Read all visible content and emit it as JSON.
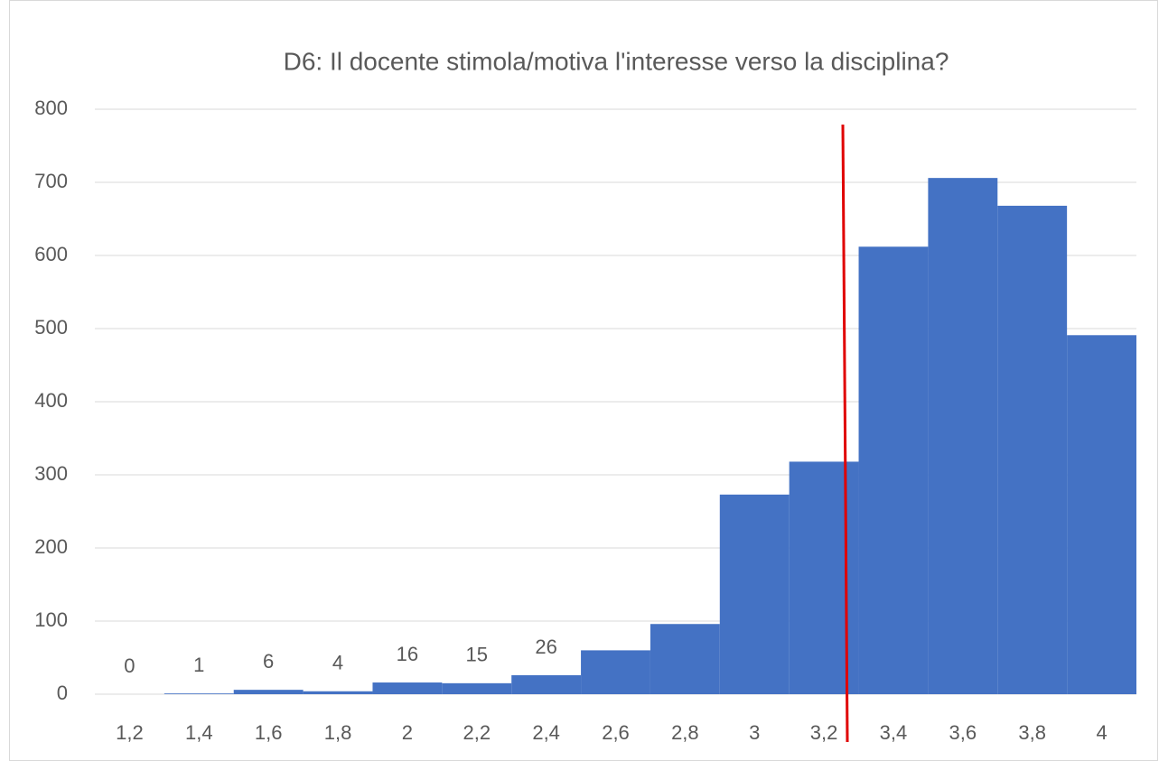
{
  "chart_data": {
    "type": "bar",
    "title": "D6: Il docente stimola/motiva l'interesse verso la disciplina?",
    "categories": [
      "1,2",
      "1,4",
      "1,6",
      "1,8",
      "2",
      "2,2",
      "2,4",
      "2,6",
      "2,8",
      "3",
      "3,2",
      "3,4",
      "3,6",
      "3,8",
      "4"
    ],
    "values": [
      0,
      1,
      6,
      4,
      16,
      15,
      26,
      60,
      96,
      273,
      318,
      612,
      706,
      668,
      491
    ],
    "value_labels": [
      "0",
      "1",
      "6",
      "4",
      "16",
      "15",
      "26",
      null,
      null,
      null,
      null,
      null,
      null,
      null,
      null
    ],
    "color": "#4472c4",
    "ylim": [
      0,
      800
    ],
    "yticks": [
      0,
      100,
      200,
      300,
      400,
      500,
      600,
      700,
      800
    ],
    "grid": true
  }
}
